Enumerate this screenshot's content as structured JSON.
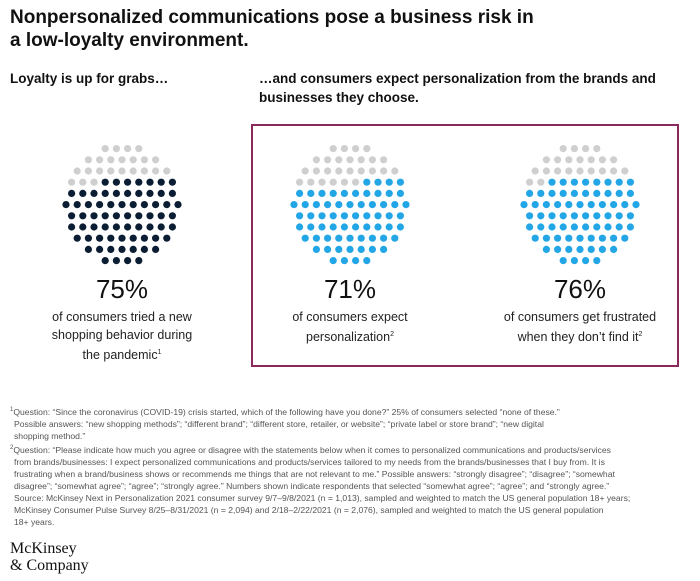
{
  "header": {
    "title_line1": "Nonpersonalized communications pose a business risk in",
    "title_line2": "a low-loyalty environment.",
    "sub_left": "Loyalty is up for grabs…",
    "sub_right_line1": "…and consumers expect personalization from the brands and",
    "sub_right_line2": "businesses they choose."
  },
  "chart_data": {
    "type": "dot-matrix",
    "series": [
      {
        "value": 75,
        "value_label": "75%",
        "desc_lines": [
          "of consumers tried a new",
          "shopping behavior during",
          "the pandemic"
        ],
        "footnote_ref": "1",
        "color": "#0b1d33"
      },
      {
        "value": 71,
        "value_label": "71%",
        "desc_lines": [
          "of consumers expect",
          "personalization"
        ],
        "footnote_ref": "2",
        "color": "#23a6e6"
      },
      {
        "value": 76,
        "value_label": "76%",
        "desc_lines": [
          "of consumers get frustrated",
          "when they don’t find it"
        ],
        "footnote_ref": "2",
        "color": "#23a6e6"
      }
    ],
    "base_color": "#cfcfcf"
  },
  "notes": {
    "n1_num": "1",
    "n1_line1": "Question: “Since the coronavirus (COVID-19) crisis started, which of the following have you done?” 25% of consumers selected “none of these.”",
    "n1_line2": "Possible answers: “new shopping methods”; “different brand”; “different store, retailer, or website”; “private label or store brand”; “new digital",
    "n1_line3": "shopping method.”",
    "n2_num": "2",
    "n2_line1": "Question: “Please indicate how much you agree or disagree with the statements below when it comes to personalized communications and products/services",
    "n2_line2": "from brands/businesses: I expect personalized communications and products/services tailored to my needs from the brands/businesses that I buy from. It is",
    "n2_line3": "frustrating when a brand/business shows or recommends me things that are not relevant to me.” Possible answers: “strongly disagree”; “disagree”; “somewhat",
    "n2_line4": "disagree”; “somewhat agree”; “agree”; “strongly agree.” Numbers shown indicate respondents that selected “somewhat agree”; “agree”; and “strongly agree.”",
    "source_line1": "Source: McKinsey Next in Personalization 2021 consumer survey 9/7–9/8/2021 (n = 1,013), sampled and weighted to match the US general population 18+ years;",
    "source_line2": "McKinsey Consumer Pulse Survey 8/25–8/31/2021 (n = 2,094) and 2/18–2/22/2021 (n = 2,076), sampled and weighted to match the US general population",
    "source_line3": "18+ years."
  },
  "logo": {
    "line1": "McKinsey",
    "line2": "& Company"
  }
}
